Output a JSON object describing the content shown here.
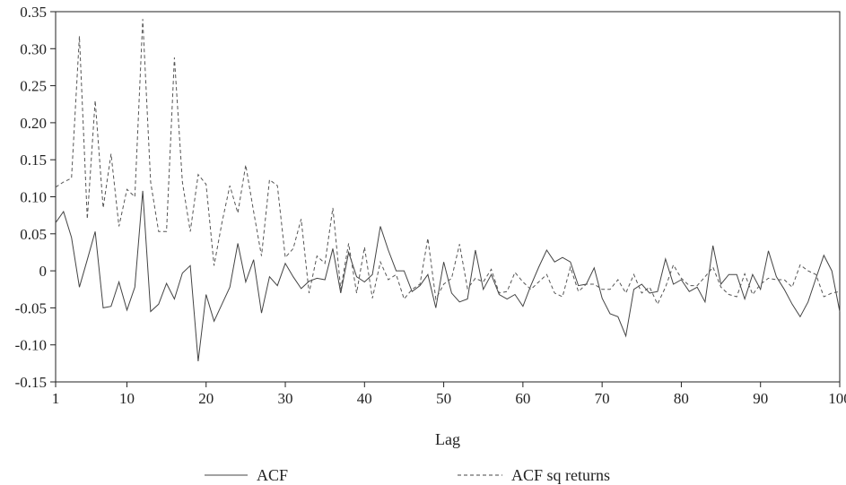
{
  "chart_data": {
    "type": "line",
    "title": "",
    "xlabel": "Lag",
    "ylabel": "",
    "xlim": [
      1,
      100
    ],
    "ylim": [
      -0.15,
      0.35
    ],
    "x_ticks": [
      1,
      10,
      20,
      30,
      40,
      50,
      60,
      70,
      80,
      90,
      100
    ],
    "x_tick_labels": [
      "1",
      "10",
      "20",
      "30",
      "40",
      "50",
      "60",
      "70",
      "80",
      "90",
      "100"
    ],
    "y_ticks": [
      -0.15,
      -0.1,
      -0.05,
      0,
      0.05,
      0.1,
      0.15,
      0.2,
      0.25,
      0.3,
      0.35
    ],
    "y_tick_labels": [
      "-0.15",
      "-0.10",
      "-0.05",
      "0",
      "0.05",
      "0.10",
      "0.15",
      "0.20",
      "0.25",
      "0.30",
      "0.35"
    ],
    "grid": false,
    "legend_position": "bottom",
    "x": [
      1,
      2,
      3,
      4,
      5,
      6,
      7,
      8,
      9,
      10,
      11,
      12,
      13,
      14,
      15,
      16,
      17,
      18,
      19,
      20,
      21,
      22,
      23,
      24,
      25,
      26,
      27,
      28,
      29,
      30,
      31,
      32,
      33,
      34,
      35,
      36,
      37,
      38,
      39,
      40,
      41,
      42,
      43,
      44,
      45,
      46,
      47,
      48,
      49,
      50,
      51,
      52,
      53,
      54,
      55,
      56,
      57,
      58,
      59,
      60,
      61,
      62,
      63,
      64,
      65,
      66,
      67,
      68,
      69,
      70,
      71,
      72,
      73,
      74,
      75,
      76,
      77,
      78,
      79,
      80,
      81,
      82,
      83,
      84,
      85,
      86,
      87,
      88,
      89,
      90,
      91,
      92,
      93,
      94,
      95,
      96,
      97,
      98,
      99,
      100
    ],
    "series": [
      {
        "name": "ACF",
        "style": "solid",
        "values": [
          0.065,
          0.08,
          0.045,
          -0.022,
          0.015,
          0.053,
          -0.05,
          -0.048,
          -0.015,
          -0.053,
          -0.022,
          0.108,
          -0.055,
          -0.045,
          -0.017,
          -0.038,
          -0.003,
          0.007,
          -0.122,
          -0.032,
          -0.068,
          -0.045,
          -0.022,
          0.037,
          -0.015,
          0.015,
          -0.057,
          -0.008,
          -0.02,
          0.01,
          -0.008,
          -0.024,
          -0.014,
          -0.01,
          -0.012,
          0.03,
          -0.03,
          0.025,
          -0.008,
          -0.015,
          -0.005,
          0.06,
          0.028,
          0.0,
          0.0,
          -0.028,
          -0.02,
          -0.005,
          -0.05,
          0.012,
          -0.03,
          -0.042,
          -0.038,
          0.028,
          -0.025,
          -0.005,
          -0.032,
          -0.038,
          -0.032,
          -0.048,
          -0.02,
          0.005,
          0.028,
          0.012,
          0.018,
          0.012,
          -0.02,
          -0.018,
          0.004,
          -0.037,
          -0.058,
          -0.062,
          -0.088,
          -0.025,
          -0.018,
          -0.03,
          -0.028,
          0.016,
          -0.018,
          -0.012,
          -0.028,
          -0.022,
          -0.042,
          0.034,
          -0.018,
          -0.005,
          -0.005,
          -0.038,
          -0.005,
          -0.025,
          0.027,
          -0.008,
          -0.025,
          -0.045,
          -0.062,
          -0.042,
          -0.01,
          0.021,
          0.0,
          -0.055
        ]
      },
      {
        "name": "ACF sq returns",
        "style": "dashed",
        "values": [
          0.113,
          0.12,
          0.125,
          0.317,
          0.07,
          0.23,
          0.085,
          0.158,
          0.06,
          0.11,
          0.1,
          0.34,
          0.12,
          0.053,
          0.053,
          0.288,
          0.12,
          0.053,
          0.13,
          0.117,
          0.007,
          0.065,
          0.115,
          0.078,
          0.143,
          0.08,
          0.02,
          0.123,
          0.115,
          0.018,
          0.03,
          0.07,
          -0.03,
          0.02,
          0.01,
          0.085,
          -0.025,
          0.037,
          -0.03,
          0.032,
          -0.037,
          0.012,
          -0.012,
          -0.005,
          -0.038,
          -0.025,
          -0.018,
          0.044,
          -0.038,
          -0.018,
          -0.01,
          0.036,
          -0.024,
          -0.01,
          -0.015,
          0.002,
          -0.03,
          -0.028,
          -0.002,
          -0.015,
          -0.025,
          -0.015,
          -0.005,
          -0.03,
          -0.035,
          0.005,
          -0.028,
          -0.018,
          -0.018,
          -0.025,
          -0.025,
          -0.012,
          -0.03,
          -0.005,
          -0.03,
          -0.022,
          -0.045,
          -0.022,
          0.008,
          -0.01,
          -0.02,
          -0.02,
          -0.008,
          0.005,
          -0.022,
          -0.032,
          -0.035,
          -0.004,
          -0.032,
          -0.018,
          -0.01,
          -0.012,
          -0.012,
          -0.022,
          0.008,
          0.0,
          -0.005,
          -0.035,
          -0.03,
          -0.028
        ]
      }
    ]
  }
}
